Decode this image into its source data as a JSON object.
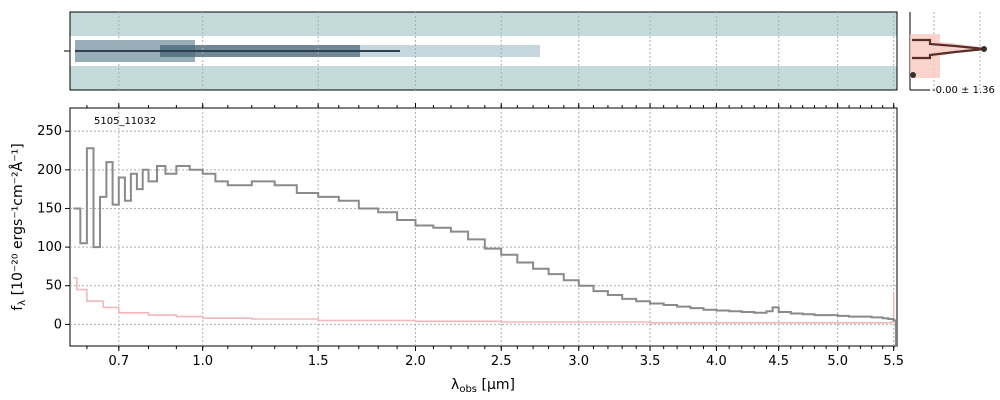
{
  "chart_data": {
    "type": "line",
    "xlabel": {
      "main": "λ",
      "sub": "obs",
      "rest": " [μm]"
    },
    "ylabel": {
      "main": "f",
      "sub": "λ",
      "rest": " [10⁻²⁰ ergs⁻¹cm⁻²Å⁻¹]"
    },
    "x_ticks": [
      {
        "label": "0.7",
        "v": 0.7
      },
      {
        "label": "1.0",
        "v": 1.0
      },
      {
        "label": "1.5",
        "v": 1.5
      },
      {
        "label": "2.0",
        "v": 2.0
      },
      {
        "label": "2.5",
        "v": 2.5
      },
      {
        "label": "3.0",
        "v": 3.0
      },
      {
        "label": "3.5",
        "v": 3.5
      },
      {
        "label": "4.0",
        "v": 4.0
      },
      {
        "label": "4.5",
        "v": 4.5
      },
      {
        "label": "5.0",
        "v": 5.0
      },
      {
        "label": "5.5",
        "v": 5.5
      }
    ],
    "y_ticks": [
      0,
      50,
      100,
      150,
      200,
      250
    ],
    "ylim": [
      -28,
      280
    ],
    "xlim": [
      0.55,
      5.53
    ],
    "annotation": "5105_11032",
    "grid": true,
    "colors": {
      "flux": "#8a8a8a",
      "error": "#f4b8b8",
      "profile": "#5a2d28",
      "profile_fill": "#f7c9c0",
      "twod": "#c5dada"
    },
    "profile_label": "-0.00 ± 1.36",
    "series": [
      {
        "role": "flux",
        "points": [
          [
            0.56,
            150
          ],
          [
            0.58,
            105
          ],
          [
            0.6,
            228
          ],
          [
            0.62,
            100
          ],
          [
            0.64,
            165
          ],
          [
            0.66,
            210
          ],
          [
            0.68,
            155
          ],
          [
            0.7,
            190
          ],
          [
            0.72,
            160
          ],
          [
            0.74,
            195
          ],
          [
            0.76,
            175
          ],
          [
            0.78,
            200
          ],
          [
            0.8,
            185
          ],
          [
            0.83,
            205
          ],
          [
            0.86,
            195
          ],
          [
            0.9,
            205
          ],
          [
            0.95,
            200
          ],
          [
            1.0,
            195
          ],
          [
            1.05,
            185
          ],
          [
            1.1,
            180
          ],
          [
            1.2,
            185
          ],
          [
            1.3,
            180
          ],
          [
            1.4,
            170
          ],
          [
            1.5,
            165
          ],
          [
            1.6,
            160
          ],
          [
            1.7,
            150
          ],
          [
            1.8,
            145
          ],
          [
            1.9,
            135
          ],
          [
            2.0,
            128
          ],
          [
            2.1,
            125
          ],
          [
            2.2,
            120
          ],
          [
            2.3,
            110
          ],
          [
            2.4,
            98
          ],
          [
            2.5,
            90
          ],
          [
            2.6,
            80
          ],
          [
            2.7,
            72
          ],
          [
            2.8,
            65
          ],
          [
            2.9,
            57
          ],
          [
            3.0,
            50
          ],
          [
            3.1,
            43
          ],
          [
            3.2,
            38
          ],
          [
            3.3,
            33
          ],
          [
            3.4,
            30
          ],
          [
            3.5,
            27
          ],
          [
            3.6,
            25
          ],
          [
            3.7,
            23
          ],
          [
            3.8,
            21
          ],
          [
            3.9,
            19
          ],
          [
            4.0,
            18
          ],
          [
            4.1,
            17
          ],
          [
            4.2,
            16
          ],
          [
            4.3,
            15
          ],
          [
            4.4,
            17
          ],
          [
            4.45,
            22
          ],
          [
            4.5,
            16
          ],
          [
            4.6,
            14
          ],
          [
            4.7,
            13
          ],
          [
            4.8,
            12
          ],
          [
            4.9,
            12
          ],
          [
            5.0,
            11
          ],
          [
            5.1,
            10
          ],
          [
            5.2,
            10
          ],
          [
            5.3,
            9
          ],
          [
            5.4,
            8
          ],
          [
            5.45,
            7
          ],
          [
            5.5,
            5
          ],
          [
            5.52,
            -28
          ]
        ]
      },
      {
        "role": "error",
        "points": [
          [
            0.56,
            60
          ],
          [
            0.57,
            45
          ],
          [
            0.6,
            30
          ],
          [
            0.65,
            22
          ],
          [
            0.7,
            15
          ],
          [
            0.8,
            12
          ],
          [
            0.9,
            10
          ],
          [
            1.0,
            8
          ],
          [
            1.2,
            7
          ],
          [
            1.5,
            5
          ],
          [
            2.0,
            4
          ],
          [
            2.5,
            3
          ],
          [
            3.0,
            3
          ],
          [
            3.5,
            2
          ],
          [
            4.0,
            2
          ],
          [
            4.5,
            2
          ],
          [
            5.0,
            2
          ],
          [
            5.4,
            2
          ],
          [
            5.48,
            3
          ],
          [
            5.5,
            42
          ]
        ]
      }
    ]
  }
}
